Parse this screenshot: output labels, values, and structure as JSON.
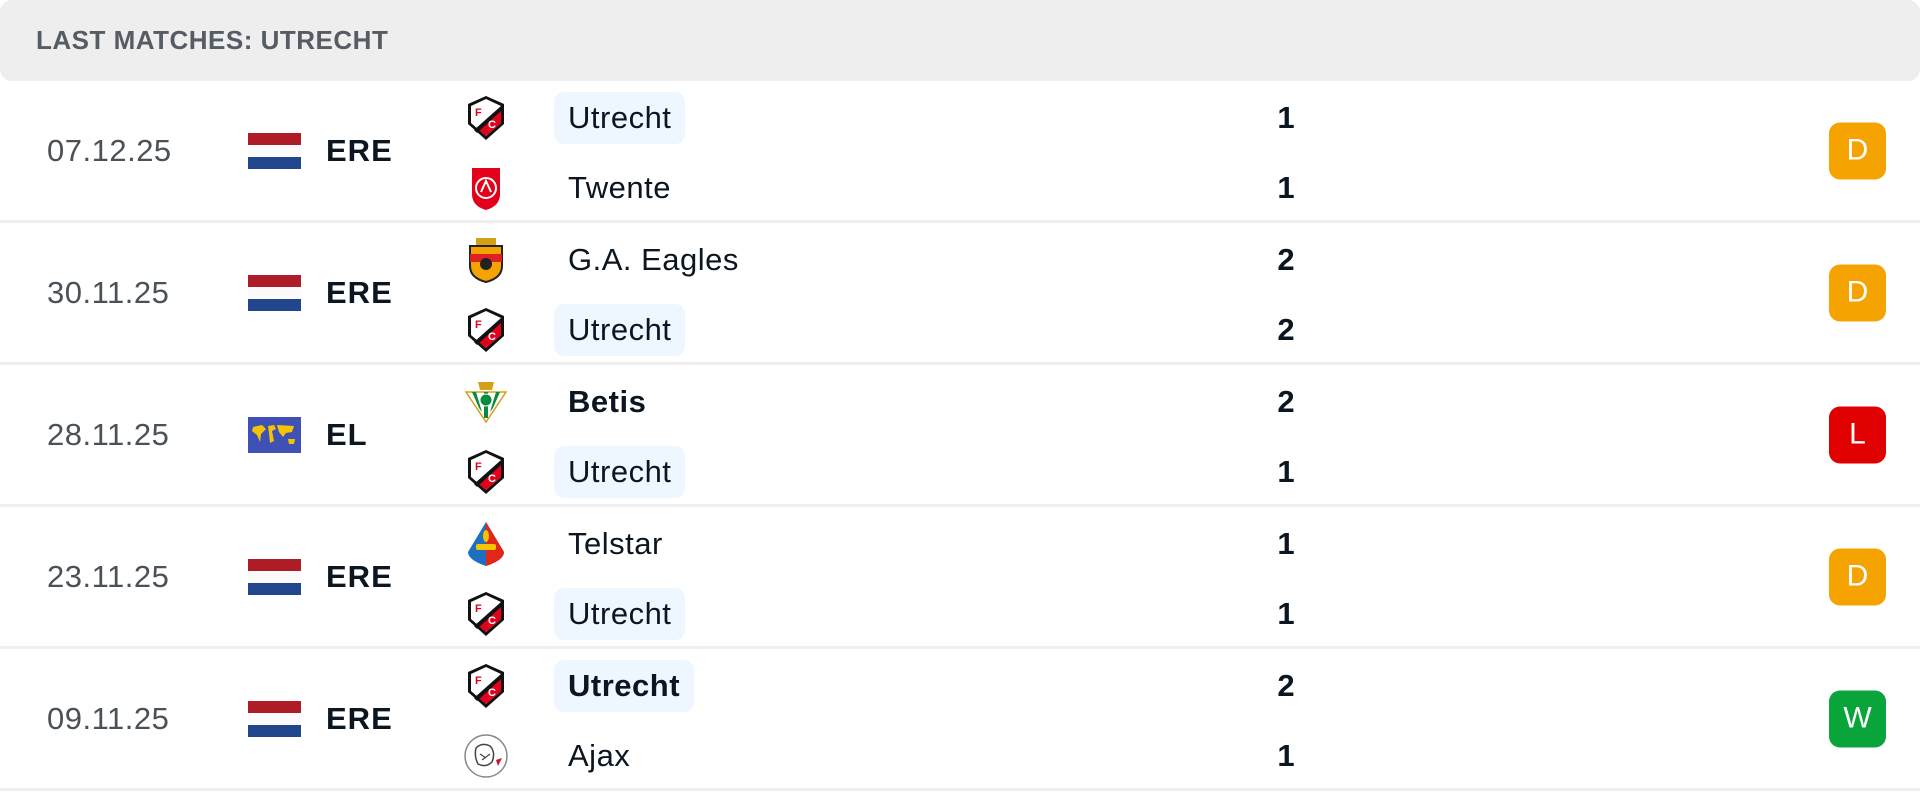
{
  "header": {
    "title": "LAST MATCHES: UTRECHT"
  },
  "colors": {
    "draw": "#f5a300",
    "loss": "#e10000",
    "win": "#0aa53a",
    "highlight": "#eef6ff"
  },
  "matches": [
    {
      "date": "07.12.25",
      "flag": "netherlands-flag",
      "league": "ERE",
      "home": {
        "name": "Utrecht",
        "logo": "utrecht",
        "highlight": true,
        "bold": false,
        "score": "1"
      },
      "away": {
        "name": "Twente",
        "logo": "twente",
        "highlight": false,
        "bold": false,
        "score": "1"
      },
      "result": "D"
    },
    {
      "date": "30.11.25",
      "flag": "netherlands-flag",
      "league": "ERE",
      "home": {
        "name": "G.A. Eagles",
        "logo": "eagles",
        "highlight": false,
        "bold": false,
        "score": "2"
      },
      "away": {
        "name": "Utrecht",
        "logo": "utrecht",
        "highlight": true,
        "bold": false,
        "score": "2"
      },
      "result": "D"
    },
    {
      "date": "28.11.25",
      "flag": "world-flag",
      "league": "EL",
      "home": {
        "name": "Betis",
        "logo": "betis",
        "highlight": false,
        "bold": true,
        "score": "2"
      },
      "away": {
        "name": "Utrecht",
        "logo": "utrecht",
        "highlight": true,
        "bold": false,
        "score": "1"
      },
      "result": "L"
    },
    {
      "date": "23.11.25",
      "flag": "netherlands-flag",
      "league": "ERE",
      "home": {
        "name": "Telstar",
        "logo": "telstar",
        "highlight": false,
        "bold": false,
        "score": "1"
      },
      "away": {
        "name": "Utrecht",
        "logo": "utrecht",
        "highlight": true,
        "bold": false,
        "score": "1"
      },
      "result": "D"
    },
    {
      "date": "09.11.25",
      "flag": "netherlands-flag",
      "league": "ERE",
      "home": {
        "name": "Utrecht",
        "logo": "utrecht",
        "highlight": true,
        "bold": true,
        "score": "2"
      },
      "away": {
        "name": "Ajax",
        "logo": "ajax",
        "highlight": false,
        "bold": false,
        "score": "1"
      },
      "result": "W"
    }
  ]
}
